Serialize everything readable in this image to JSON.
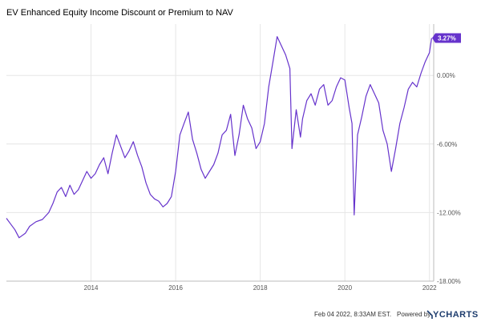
{
  "chart_data": {
    "type": "line",
    "title": "EV Enhanced Equity Income Discount or Premium to NAV",
    "series": [
      {
        "x": [
          2012.0,
          2012.1,
          2012.2,
          2012.3,
          2012.45,
          2012.55,
          2012.7,
          2012.85,
          2013.0,
          2013.1,
          2013.2,
          2013.3,
          2013.4,
          2013.5,
          2013.6,
          2013.7,
          2013.8,
          2013.9,
          2014.0,
          2014.1,
          2014.2,
          2014.3,
          2014.4,
          2014.5,
          2014.6,
          2014.7,
          2014.8,
          2014.9,
          2015.0,
          2015.1,
          2015.2,
          2015.3,
          2015.4,
          2015.5,
          2015.6,
          2015.7,
          2015.8,
          2015.9,
          2016.0,
          2016.1,
          2016.2,
          2016.3,
          2016.4,
          2016.5,
          2016.6,
          2016.7,
          2016.8,
          2016.9,
          2017.0,
          2017.1,
          2017.2,
          2017.3,
          2017.4,
          2017.5,
          2017.6,
          2017.7,
          2017.8,
          2017.9,
          2018.0,
          2018.1,
          2018.2,
          2018.3,
          2018.4,
          2018.5,
          2018.6,
          2018.7,
          2018.75,
          2018.85,
          2018.95,
          2019.0,
          2019.1,
          2019.2,
          2019.3,
          2019.4,
          2019.5,
          2019.6,
          2019.7,
          2019.8,
          2019.9,
          2020.0,
          2020.1,
          2020.17,
          2020.22,
          2020.3,
          2020.4,
          2020.5,
          2020.6,
          2020.7,
          2020.8,
          2020.9,
          2021.0,
          2021.1,
          2021.2,
          2021.3,
          2021.4,
          2021.5,
          2021.6,
          2021.7,
          2021.8,
          2021.9,
          2022.0,
          2022.05
        ],
        "y": [
          -12.5,
          -13.0,
          -13.5,
          -14.2,
          -13.8,
          -13.2,
          -12.8,
          -12.6,
          -12.0,
          -11.2,
          -10.2,
          -9.8,
          -10.6,
          -9.6,
          -10.4,
          -10.0,
          -9.2,
          -8.4,
          -9.0,
          -8.6,
          -7.8,
          -7.2,
          -8.6,
          -6.8,
          -5.2,
          -6.2,
          -7.2,
          -6.6,
          -5.8,
          -7.0,
          -8.0,
          -9.4,
          -10.4,
          -10.8,
          -11.0,
          -11.5,
          -11.2,
          -10.6,
          -8.4,
          -5.2,
          -4.2,
          -3.2,
          -5.6,
          -6.8,
          -8.2,
          -9.0,
          -8.4,
          -7.8,
          -6.8,
          -5.2,
          -4.8,
          -3.4,
          -7.0,
          -5.2,
          -2.6,
          -3.8,
          -4.6,
          -6.4,
          -5.8,
          -4.2,
          -1.0,
          1.2,
          3.4,
          2.6,
          1.8,
          0.6,
          -6.4,
          -3.0,
          -5.4,
          -3.8,
          -2.2,
          -1.6,
          -2.6,
          -1.2,
          -0.8,
          -2.6,
          -2.2,
          -1.0,
          -0.2,
          -0.4,
          -2.8,
          -4.2,
          -12.2,
          -5.2,
          -3.6,
          -1.8,
          -0.8,
          -1.6,
          -2.4,
          -4.8,
          -6.0,
          -8.4,
          -6.4,
          -4.2,
          -2.8,
          -1.2,
          -0.6,
          -1.0,
          0.2,
          1.2,
          2.0,
          3.27
        ]
      }
    ],
    "ylim": [
      -18,
      4.5
    ],
    "xlim": [
      2012,
      2022.1
    ],
    "y_ticks": [
      0,
      -6,
      -12,
      -18
    ],
    "y_tick_labels": [
      "0.00%",
      "-6.00%",
      "-12.00%",
      "-18.00%"
    ],
    "x_ticks": [
      2014,
      2016,
      2018,
      2020,
      2022
    ],
    "x_tick_labels": [
      "2014",
      "2016",
      "2018",
      "2020",
      "2022"
    ],
    "grid": true,
    "last_value_label": "3.27%",
    "line_color": "#6633cc"
  },
  "footer": {
    "timestamp": "Feb 04 2022, 8:33AM EST.",
    "powered_by": "Powered by",
    "brand": "YCHARTS"
  }
}
